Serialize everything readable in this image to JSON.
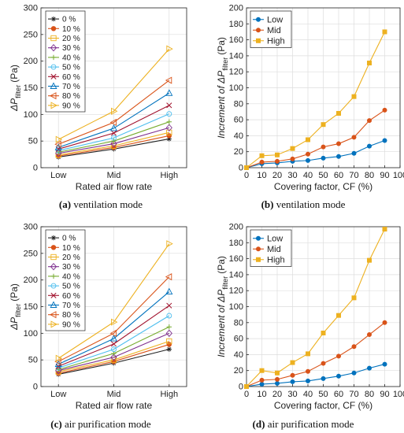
{
  "chart_data": [
    {
      "id": "a",
      "type": "line",
      "caption_letter": "(a)",
      "caption_text": "ventilation mode",
      "xlabel": "Rated air flow rate",
      "ylabel_main": "ΔP",
      "ylabel_sub": "filter",
      "ylabel_unit": "(Pa)",
      "categories": [
        "Low",
        "Mid",
        "High"
      ],
      "ylim": [
        0,
        300
      ],
      "yticks": [
        "0",
        "50",
        "100",
        "150",
        "200",
        "250",
        "300"
      ],
      "legend_position": "top-left",
      "series": [
        {
          "name": "0 %",
          "color": "#222222",
          "marker": "asterisk",
          "values": [
            20,
            35,
            54
          ]
        },
        {
          "name": "10 %",
          "color": "#d95319",
          "marker": "circle-filled",
          "values": [
            22,
            38,
            60
          ]
        },
        {
          "name": "20 %",
          "color": "#edb120",
          "marker": "square",
          "values": [
            24,
            41,
            66
          ]
        },
        {
          "name": "30 %",
          "color": "#7e2f8e",
          "marker": "diamond",
          "values": [
            27,
            45,
            75
          ]
        },
        {
          "name": "40 %",
          "color": "#77ac30",
          "marker": "plus",
          "values": [
            29,
            50,
            86
          ]
        },
        {
          "name": "50 %",
          "color": "#4dbeee",
          "marker": "circle",
          "values": [
            32,
            56,
            101
          ]
        },
        {
          "name": "60 %",
          "color": "#a2142f",
          "marker": "x",
          "values": [
            35,
            65,
            117
          ]
        },
        {
          "name": "70 %",
          "color": "#0072bd",
          "marker": "triangle-up",
          "values": [
            38,
            74,
            140
          ]
        },
        {
          "name": "80 %",
          "color": "#d95319",
          "marker": "triangle-left",
          "values": [
            44,
            85,
            164
          ]
        },
        {
          "name": "90 %",
          "color": "#edb120",
          "marker": "triangle-right",
          "values": [
            53,
            106,
            223
          ]
        }
      ]
    },
    {
      "id": "b",
      "type": "line",
      "caption_letter": "(b)",
      "caption_text": "ventilation mode",
      "xlabel": "Covering factor, CF (%)",
      "ylabel_main": "Increment of ΔP",
      "ylabel_sub": "filter",
      "ylabel_unit": "(Pa)",
      "x": [
        0,
        10,
        20,
        30,
        40,
        50,
        60,
        70,
        80,
        90
      ],
      "xlim": [
        0,
        100
      ],
      "xticks": [
        "0",
        "10",
        "20",
        "30",
        "40",
        "50",
        "60",
        "70",
        "80",
        "90",
        "100"
      ],
      "ylim": [
        0,
        200
      ],
      "yticks": [
        "0",
        "20",
        "40",
        "60",
        "80",
        "100",
        "120",
        "140",
        "160",
        "180",
        "200"
      ],
      "legend_position": "top-left",
      "series": [
        {
          "name": "Low",
          "color": "#0072bd",
          "marker": "dot",
          "values": [
            0,
            5,
            6,
            8,
            9,
            12,
            14,
            18,
            27,
            34
          ]
        },
        {
          "name": "Mid",
          "color": "#d95319",
          "marker": "dot",
          "values": [
            0,
            7,
            8,
            11,
            17,
            26,
            30,
            38,
            59,
            72
          ]
        },
        {
          "name": "High",
          "color": "#edb120",
          "marker": "square-filled",
          "values": [
            0,
            15,
            16,
            24,
            35,
            54,
            68,
            89,
            131,
            170
          ]
        }
      ]
    },
    {
      "id": "c",
      "type": "line",
      "caption_letter": "(c)",
      "caption_text": "air purification mode",
      "xlabel": "Rated air flow rate",
      "ylabel_main": "ΔP",
      "ylabel_sub": "filter",
      "ylabel_unit": "(Pa)",
      "categories": [
        "Low",
        "Mid",
        "High"
      ],
      "ylim": [
        0,
        300
      ],
      "yticks": [
        "0",
        "50",
        "100",
        "150",
        "200",
        "250",
        "300"
      ],
      "legend_position": "top-left",
      "series": [
        {
          "name": "0 %",
          "color": "#222222",
          "marker": "asterisk",
          "values": [
            23,
            44,
            70
          ]
        },
        {
          "name": "10 %",
          "color": "#d95319",
          "marker": "circle-filled",
          "values": [
            25,
            47,
            79
          ]
        },
        {
          "name": "20 %",
          "color": "#edb120",
          "marker": "square",
          "values": [
            28,
            50,
            85
          ]
        },
        {
          "name": "30 %",
          "color": "#7e2f8e",
          "marker": "diamond",
          "values": [
            30,
            55,
            100
          ]
        },
        {
          "name": "40 %",
          "color": "#77ac30",
          "marker": "plus",
          "values": [
            32,
            62,
            112
          ]
        },
        {
          "name": "50 %",
          "color": "#4dbeee",
          "marker": "circle",
          "values": [
            35,
            70,
            133
          ]
        },
        {
          "name": "60 %",
          "color": "#a2142f",
          "marker": "x",
          "values": [
            38,
            80,
            152
          ]
        },
        {
          "name": "70 %",
          "color": "#0072bd",
          "marker": "triangle-up",
          "values": [
            42,
            90,
            178
          ]
        },
        {
          "name": "80 %",
          "color": "#d95319",
          "marker": "triangle-left",
          "values": [
            47,
            100,
            206
          ]
        },
        {
          "name": "90 %",
          "color": "#edb120",
          "marker": "triangle-right",
          "values": [
            53,
            121,
            268
          ]
        }
      ]
    },
    {
      "id": "d",
      "type": "line",
      "caption_letter": "(d)",
      "caption_text": "air purification mode",
      "xlabel": "Covering factor, CF (%)",
      "ylabel_main": "Increment of ΔP",
      "ylabel_sub": "filter",
      "ylabel_unit": "(Pa)",
      "x": [
        0,
        10,
        20,
        30,
        40,
        50,
        60,
        70,
        80,
        90
      ],
      "xlim": [
        0,
        100
      ],
      "xticks": [
        "0",
        "10",
        "20",
        "30",
        "40",
        "50",
        "60",
        "70",
        "80",
        "90",
        "100"
      ],
      "ylim": [
        0,
        200
      ],
      "yticks": [
        "0",
        "20",
        "40",
        "60",
        "80",
        "100",
        "120",
        "140",
        "160",
        "180",
        "200"
      ],
      "legend_position": "top-left",
      "series": [
        {
          "name": "Low",
          "color": "#0072bd",
          "marker": "dot",
          "values": [
            0,
            3,
            4,
            6,
            7,
            10,
            13,
            17,
            23,
            28
          ]
        },
        {
          "name": "Mid",
          "color": "#d95319",
          "marker": "dot",
          "values": [
            0,
            8,
            9,
            14,
            19,
            29,
            38,
            50,
            65,
            80
          ]
        },
        {
          "name": "High",
          "color": "#edb120",
          "marker": "square-filled",
          "values": [
            0,
            20,
            17,
            30,
            41,
            67,
            89,
            111,
            158,
            197
          ]
        }
      ]
    }
  ]
}
